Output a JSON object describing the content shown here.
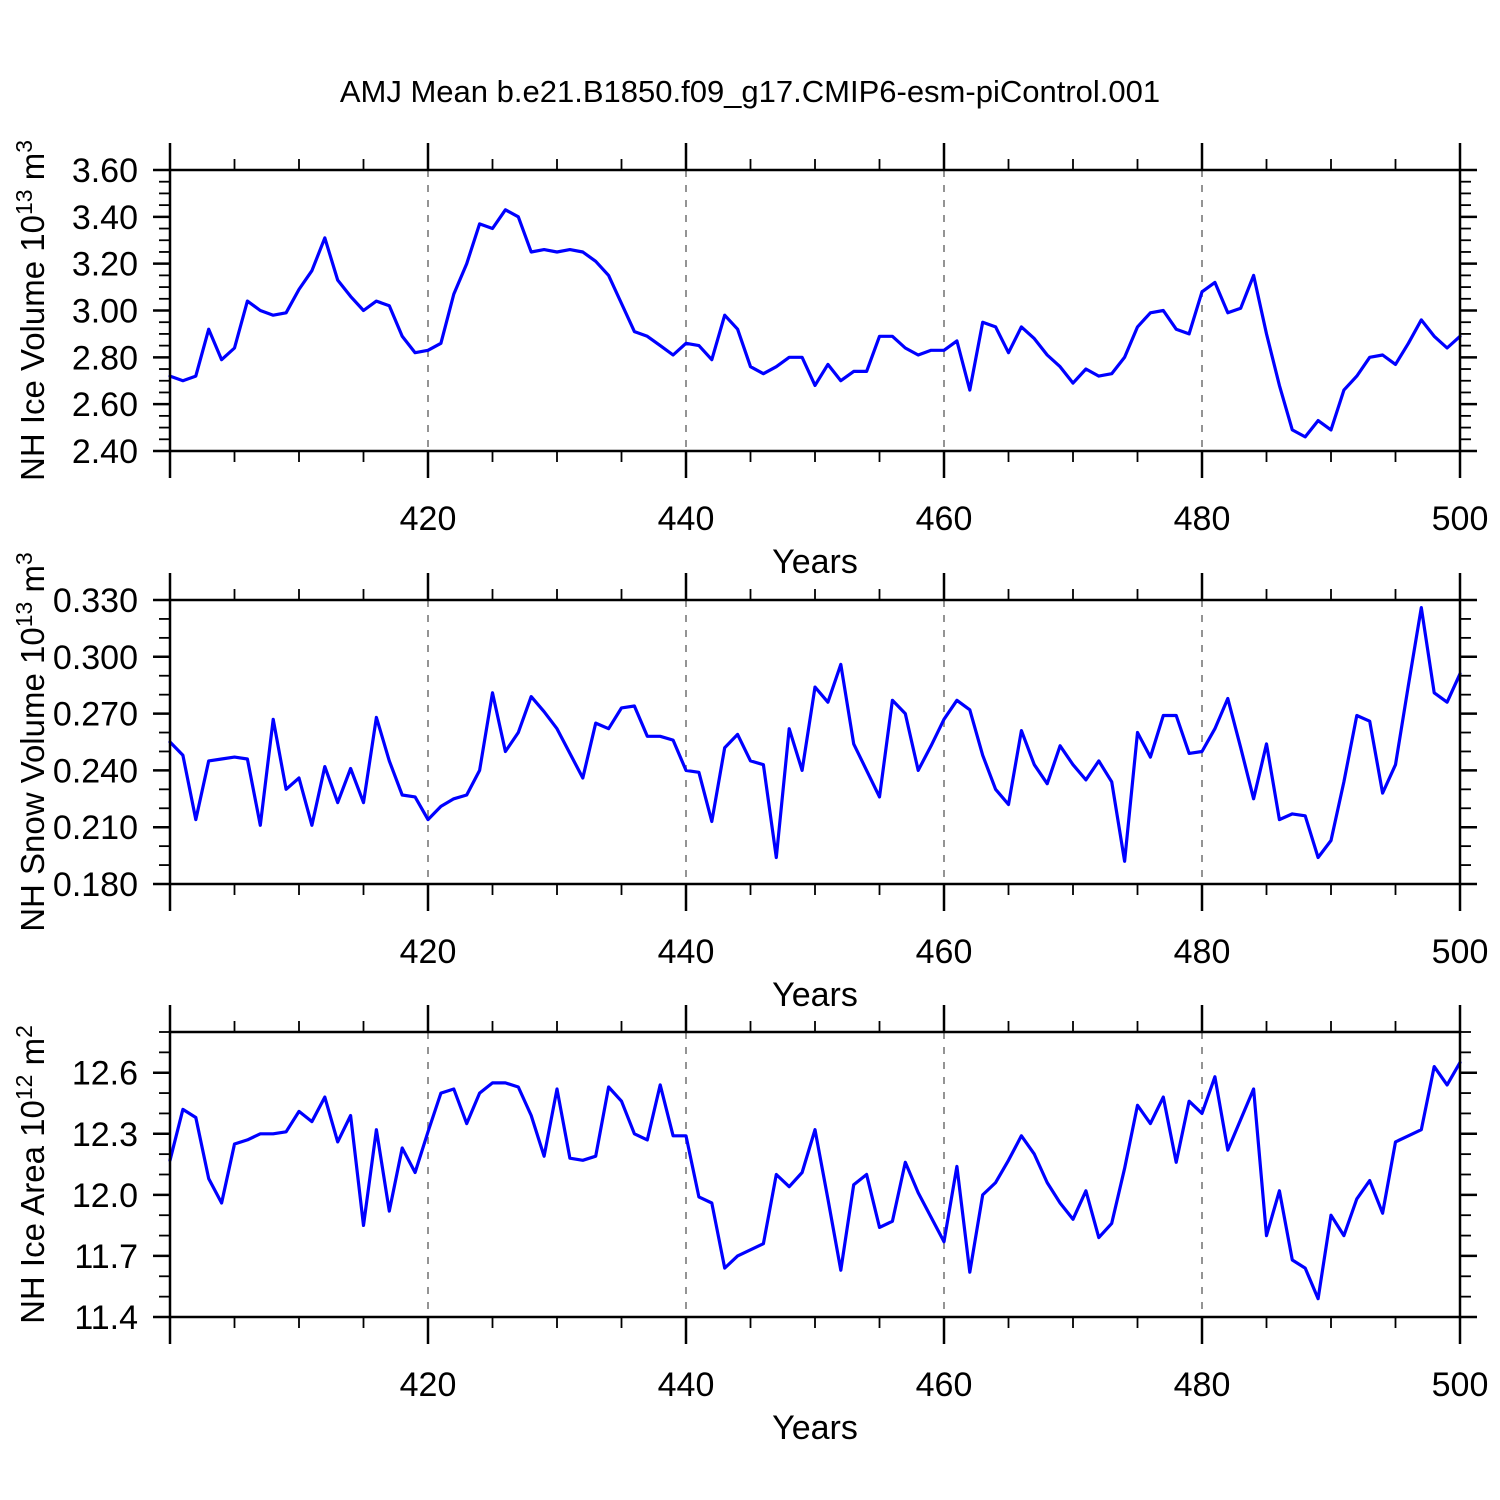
{
  "title": "AMJ Mean b.e21.B1850.f09_g17.CMIP6-esm-piControl.001",
  "styles": {
    "line_color": "#0000ff",
    "axis_color": "#000000",
    "grid_color": "#888888",
    "background": "#ffffff"
  },
  "chart_data": [
    {
      "type": "line",
      "id": "nh-ice-volume",
      "xlabel": "Years",
      "ylabel_plain": "NH Ice Volume 10^13 m^3",
      "ylabel_parts": [
        {
          "text": "NH Ice Volume 10"
        },
        {
          "text": "13",
          "sup": true
        },
        {
          "text": " m"
        },
        {
          "text": "3",
          "sup": true
        }
      ],
      "xlim": [
        400,
        500
      ],
      "ylim": [
        2.4,
        3.6
      ],
      "xtick_major": 20,
      "xtick_minor": 5,
      "xticks_labeled": [
        420,
        440,
        460,
        480,
        500
      ],
      "gridlines_x": [
        420,
        440,
        460,
        480
      ],
      "ytick_major": 0.2,
      "ytick_minor": 0.05,
      "ytick_decimals": 2,
      "x_start": 400,
      "x_step": 1,
      "values": [
        2.72,
        2.7,
        2.72,
        2.92,
        2.79,
        2.84,
        3.04,
        3.0,
        2.98,
        2.99,
        3.09,
        3.17,
        3.31,
        3.13,
        3.06,
        3.0,
        3.04,
        3.02,
        2.89,
        2.82,
        2.83,
        2.86,
        3.07,
        3.2,
        3.37,
        3.35,
        3.43,
        3.4,
        3.25,
        3.26,
        3.25,
        3.26,
        3.25,
        3.21,
        3.15,
        3.03,
        2.91,
        2.89,
        2.85,
        2.81,
        2.86,
        2.85,
        2.79,
        2.98,
        2.92,
        2.76,
        2.73,
        2.76,
        2.8,
        2.8,
        2.68,
        2.77,
        2.7,
        2.74,
        2.74,
        2.89,
        2.89,
        2.84,
        2.81,
        2.83,
        2.83,
        2.87,
        2.66,
        2.95,
        2.93,
        2.82,
        2.93,
        2.88,
        2.81,
        2.76,
        2.69,
        2.75,
        2.72,
        2.73,
        2.8,
        2.93,
        2.99,
        3.0,
        2.92,
        2.9,
        3.08,
        3.12,
        2.99,
        3.01,
        3.15,
        2.9,
        2.68,
        2.49,
        2.46,
        2.53,
        2.49,
        2.66,
        2.72,
        2.8,
        2.81,
        2.77,
        2.86,
        2.96,
        2.89,
        2.84,
        2.89
      ]
    },
    {
      "type": "line",
      "id": "nh-snow-volume",
      "xlabel": "Years",
      "ylabel_plain": "NH Snow Volume 10^13 m^3",
      "ylabel_parts": [
        {
          "text": "NH Snow Volume 10"
        },
        {
          "text": "13",
          "sup": true
        },
        {
          "text": " m"
        },
        {
          "text": "3",
          "sup": true
        }
      ],
      "xlim": [
        400,
        500
      ],
      "ylim": [
        0.18,
        0.33
      ],
      "xtick_major": 20,
      "xtick_minor": 5,
      "xticks_labeled": [
        420,
        440,
        460,
        480,
        500
      ],
      "gridlines_x": [
        420,
        440,
        460,
        480
      ],
      "ytick_major": 0.03,
      "ytick_minor": 0.01,
      "ytick_decimals": 3,
      "x_start": 400,
      "x_step": 1,
      "values": [
        0.255,
        0.248,
        0.214,
        0.245,
        0.246,
        0.247,
        0.246,
        0.211,
        0.267,
        0.23,
        0.236,
        0.211,
        0.242,
        0.223,
        0.241,
        0.223,
        0.268,
        0.245,
        0.227,
        0.226,
        0.214,
        0.221,
        0.225,
        0.227,
        0.24,
        0.281,
        0.25,
        0.26,
        0.279,
        0.271,
        0.262,
        0.249,
        0.236,
        0.265,
        0.262,
        0.273,
        0.274,
        0.258,
        0.258,
        0.256,
        0.24,
        0.239,
        0.213,
        0.252,
        0.259,
        0.245,
        0.243,
        0.194,
        0.262,
        0.24,
        0.284,
        0.276,
        0.296,
        0.254,
        0.24,
        0.226,
        0.277,
        0.27,
        0.24,
        0.253,
        0.267,
        0.277,
        0.272,
        0.248,
        0.23,
        0.222,
        0.261,
        0.243,
        0.233,
        0.253,
        0.243,
        0.235,
        0.245,
        0.234,
        0.192,
        0.26,
        0.247,
        0.269,
        0.269,
        0.249,
        0.25,
        0.262,
        0.278,
        0.252,
        0.225,
        0.254,
        0.214,
        0.217,
        0.216,
        0.194,
        0.203,
        0.234,
        0.269,
        0.266,
        0.228,
        0.243,
        0.285,
        0.326,
        0.281,
        0.276,
        0.291
      ]
    },
    {
      "type": "line",
      "id": "nh-ice-area",
      "xlabel": "Years",
      "ylabel_plain": "NH Ice Area 10^12 m^2",
      "ylabel_parts": [
        {
          "text": "NH Ice Area 10"
        },
        {
          "text": "12",
          "sup": true
        },
        {
          "text": " m"
        },
        {
          "text": "2",
          "sup": true
        }
      ],
      "xlim": [
        400,
        500
      ],
      "ylim": [
        11.4,
        12.8
      ],
      "xtick_major": 20,
      "xtick_minor": 5,
      "xticks_labeled": [
        420,
        440,
        460,
        480,
        500
      ],
      "gridlines_x": [
        420,
        440,
        460,
        480
      ],
      "ytick_major": 0.3,
      "ytick_minor": 0.1,
      "ytick_decimals": 1,
      "x_start": 400,
      "x_step": 1,
      "values": [
        12.17,
        12.42,
        12.38,
        12.08,
        11.96,
        12.25,
        12.27,
        12.3,
        12.3,
        12.31,
        12.41,
        12.36,
        12.48,
        12.26,
        12.39,
        11.85,
        12.32,
        11.92,
        12.23,
        12.11,
        12.31,
        12.5,
        12.52,
        12.35,
        12.5,
        12.55,
        12.55,
        12.53,
        12.39,
        12.19,
        12.52,
        12.18,
        12.17,
        12.19,
        12.53,
        12.46,
        12.3,
        12.27,
        12.54,
        12.29,
        12.29,
        11.99,
        11.96,
        11.64,
        11.7,
        11.73,
        11.76,
        12.1,
        12.04,
        12.11,
        12.32,
        11.98,
        11.63,
        12.05,
        12.1,
        11.84,
        11.87,
        12.16,
        12.01,
        11.89,
        11.77,
        12.14,
        11.62,
        12.0,
        12.06,
        12.17,
        12.29,
        12.2,
        12.06,
        11.96,
        11.88,
        12.02,
        11.79,
        11.86,
        12.13,
        12.44,
        12.35,
        12.48,
        12.16,
        12.46,
        12.4,
        12.58,
        12.22,
        12.37,
        12.52,
        11.8,
        12.02,
        11.68,
        11.64,
        11.49,
        11.9,
        11.8,
        11.98,
        12.07,
        11.91,
        12.26,
        12.29,
        12.32,
        12.63,
        12.54,
        12.65
      ]
    }
  ]
}
